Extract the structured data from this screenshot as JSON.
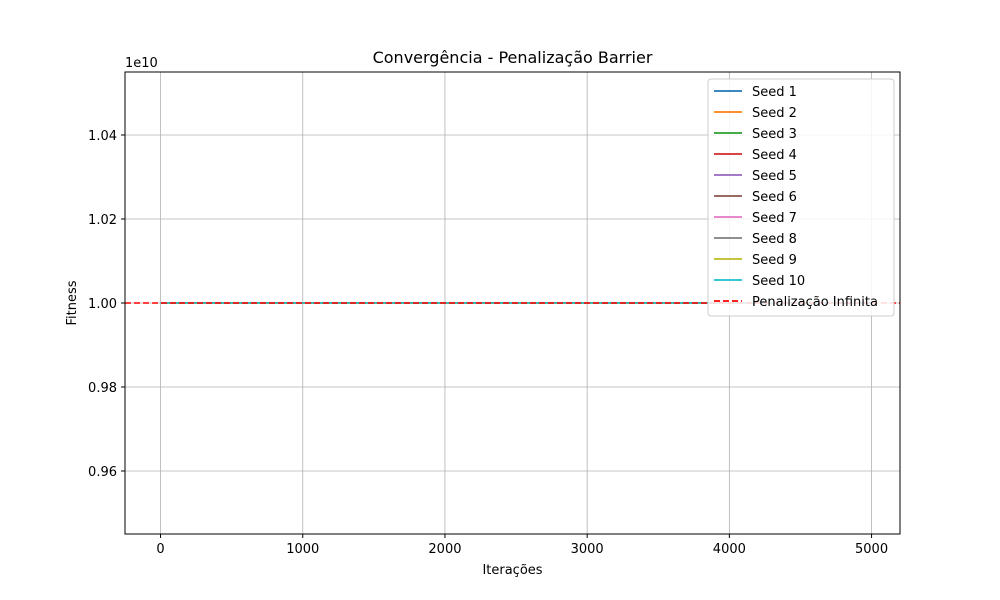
{
  "chart_data": {
    "type": "line",
    "title": "Convergência - Penalização Barrier",
    "xlabel": "Iterações",
    "ylabel": "Fitness",
    "y_offset_label": "1e10",
    "xlim": [
      -250,
      5200
    ],
    "ylim": [
      0.945,
      1.055
    ],
    "xticks": [
      0,
      1000,
      2000,
      3000,
      4000,
      5000
    ],
    "xtick_labels": [
      "0",
      "1000",
      "2000",
      "3000",
      "4000",
      "5000"
    ],
    "yticks": [
      0.96,
      0.98,
      1.0,
      1.02,
      1.04
    ],
    "ytick_labels": [
      "0.96",
      "0.98",
      "1.00",
      "1.02",
      "1.04"
    ],
    "grid": true,
    "legend_position": "top-right",
    "series": [
      {
        "name": "Seed 1",
        "color": "#1f77b4",
        "x": [
          0,
          5000
        ],
        "y": [
          1.0,
          1.0
        ]
      },
      {
        "name": "Seed 2",
        "color": "#ff7f0e",
        "x": [
          0,
          5000
        ],
        "y": [
          1.0,
          1.0
        ]
      },
      {
        "name": "Seed 3",
        "color": "#2ca02c",
        "x": [
          0,
          5000
        ],
        "y": [
          1.0,
          1.0
        ]
      },
      {
        "name": "Seed 4",
        "color": "#d62728",
        "x": [
          0,
          5000
        ],
        "y": [
          1.0,
          1.0
        ]
      },
      {
        "name": "Seed 5",
        "color": "#9467bd",
        "x": [
          0,
          5000
        ],
        "y": [
          1.0,
          1.0
        ]
      },
      {
        "name": "Seed 6",
        "color": "#8c564b",
        "x": [
          0,
          5000
        ],
        "y": [
          1.0,
          1.0
        ]
      },
      {
        "name": "Seed 7",
        "color": "#e377c2",
        "x": [
          0,
          5000
        ],
        "y": [
          1.0,
          1.0
        ]
      },
      {
        "name": "Seed 8",
        "color": "#7f7f7f",
        "x": [
          0,
          5000
        ],
        "y": [
          1.0,
          1.0
        ]
      },
      {
        "name": "Seed 9",
        "color": "#bcbd22",
        "x": [
          0,
          5000
        ],
        "y": [
          1.0,
          1.0
        ]
      },
      {
        "name": "Seed 10",
        "color": "#17becf",
        "x": [
          0,
          5000
        ],
        "y": [
          1.0,
          1.0
        ]
      }
    ],
    "reference_line": {
      "name": "Penalização Infinita",
      "y": 1.0,
      "color": "#ff0000",
      "style": "dashed"
    }
  }
}
